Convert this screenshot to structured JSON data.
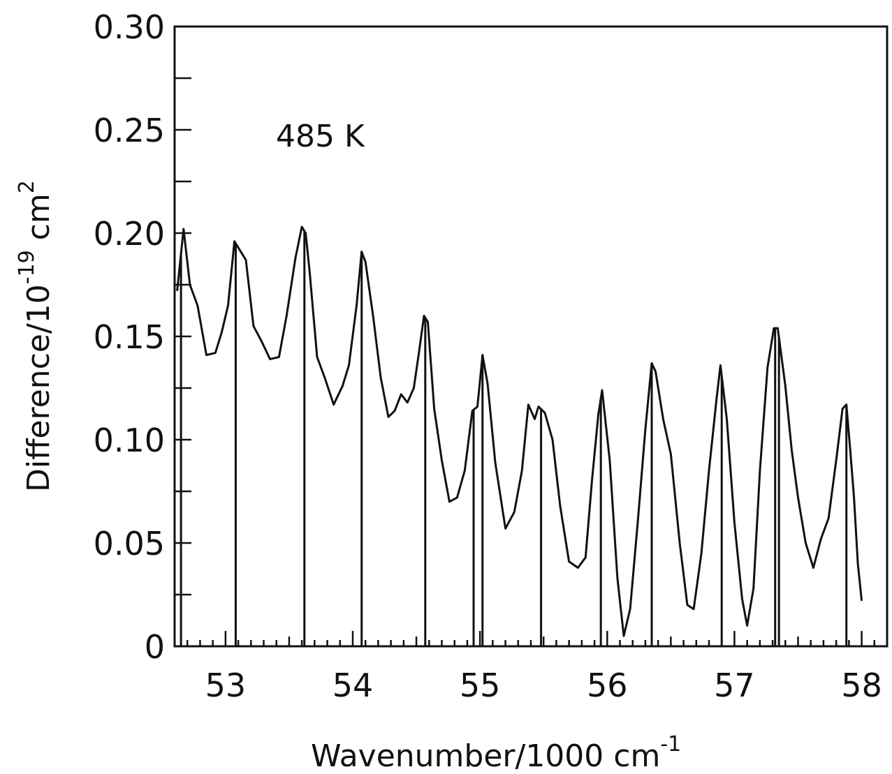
{
  "chart_data": {
    "type": "line",
    "annotation": "485 K",
    "xlabel": {
      "base": "Wavenumber/1000 cm",
      "sup": "-1"
    },
    "ylabel": {
      "base": "Difference/10",
      "sup1": "-19",
      "mid": " cm",
      "sup2": "2"
    },
    "xlim": [
      52.6,
      58.2
    ],
    "ylim": [
      0,
      0.3
    ],
    "x_ticks": [
      "53",
      "54",
      "55",
      "56",
      "57",
      "58"
    ],
    "y_ticks": [
      "0",
      "0.05",
      "0.10",
      "0.15",
      "0.20",
      "0.25",
      "0.30"
    ],
    "grid": false,
    "series": [
      {
        "x": [
          52.62,
          52.67,
          52.72,
          52.78,
          52.85,
          52.92,
          52.97,
          53.02,
          53.07,
          53.1,
          53.16,
          53.22,
          53.28,
          53.35,
          53.42,
          53.48,
          53.55,
          53.6,
          53.63,
          53.66,
          53.72,
          53.78,
          53.85,
          53.92,
          53.97,
          54.03,
          54.07,
          54.1,
          54.16,
          54.22,
          54.28,
          54.33,
          54.38,
          54.43,
          54.48,
          54.52,
          54.56,
          54.59,
          54.64,
          54.7,
          54.76,
          54.82,
          54.88,
          54.94,
          54.98,
          55.02,
          55.06,
          55.12,
          55.2,
          55.27,
          55.33,
          55.38,
          55.43,
          55.46,
          55.51,
          55.57,
          55.63,
          55.7,
          55.77,
          55.83,
          55.88,
          55.93,
          55.96,
          56.02,
          56.08,
          56.13,
          56.18,
          56.24,
          56.3,
          56.35,
          56.38,
          56.44,
          56.5,
          56.57,
          56.63,
          56.68,
          56.74,
          56.8,
          56.86,
          56.89,
          56.94,
          57.0,
          57.06,
          57.1,
          57.15,
          57.2,
          57.26,
          57.31,
          57.34,
          57.4,
          57.45,
          57.5,
          57.56,
          57.62,
          57.68,
          57.74,
          57.8,
          57.85,
          57.88,
          57.91,
          57.94,
          57.97,
          58.0
        ],
        "y": [
          0.172,
          0.202,
          0.175,
          0.165,
          0.141,
          0.142,
          0.152,
          0.165,
          0.196,
          0.193,
          0.187,
          0.155,
          0.148,
          0.139,
          0.14,
          0.16,
          0.188,
          0.203,
          0.2,
          0.182,
          0.14,
          0.13,
          0.117,
          0.126,
          0.136,
          0.165,
          0.191,
          0.186,
          0.16,
          0.13,
          0.111,
          0.114,
          0.122,
          0.118,
          0.125,
          0.142,
          0.16,
          0.157,
          0.115,
          0.09,
          0.07,
          0.072,
          0.085,
          0.114,
          0.116,
          0.141,
          0.127,
          0.089,
          0.057,
          0.065,
          0.085,
          0.117,
          0.11,
          0.116,
          0.113,
          0.1,
          0.068,
          0.041,
          0.038,
          0.043,
          0.08,
          0.112,
          0.124,
          0.09,
          0.033,
          0.005,
          0.018,
          0.06,
          0.105,
          0.137,
          0.133,
          0.11,
          0.093,
          0.05,
          0.02,
          0.018,
          0.045,
          0.085,
          0.12,
          0.136,
          0.11,
          0.06,
          0.023,
          0.01,
          0.028,
          0.085,
          0.135,
          0.154,
          0.154,
          0.126,
          0.095,
          0.072,
          0.05,
          0.038,
          0.052,
          0.062,
          0.09,
          0.115,
          0.117,
          0.095,
          0.072,
          0.04,
          0.022
        ]
      }
    ],
    "stick_lines_x": [
      52.65,
      53.08,
      53.62,
      54.07,
      54.57,
      54.95,
      55.02,
      55.48,
      55.95,
      56.35,
      56.9,
      57.32,
      57.35,
      57.88
    ]
  }
}
